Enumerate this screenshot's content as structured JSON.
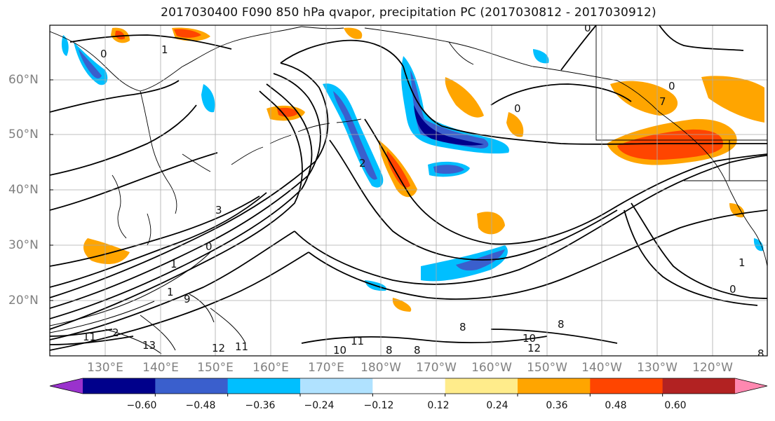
{
  "title": "2017030400 F090 850 hPa qvapor, precipitation PC (2017030812 - 2017030912)",
  "lat_labels": [
    "60°N",
    "50°N",
    "40°N",
    "30°N",
    "20°N"
  ],
  "lon_labels": [
    "130°E",
    "140°E",
    "150°E",
    "160°E",
    "170°E",
    "180°W",
    "170°W",
    "160°W",
    "150°W",
    "140°W",
    "130°W",
    "120°W"
  ],
  "colorbar": {
    "ticks": [
      "−0.60",
      "−0.48",
      "−0.36",
      "−0.24",
      "−0.12",
      "0.12",
      "0.24",
      "0.36",
      "0.48",
      "0.60"
    ],
    "colors": [
      "#9a32cd",
      "#00008b",
      "#3a5fcd",
      "#00bfff",
      "#b0e2ff",
      "#ffffff",
      "#ffec8b",
      "#ffa500",
      "#ff4500",
      "#b22222",
      "#ff88b0"
    ]
  },
  "contour_labels": [
    "0",
    "1",
    "3",
    "1",
    "0",
    "2",
    "0",
    "7",
    "0",
    "1",
    "9",
    "10",
    "11",
    "8",
    "8",
    "10",
    "12",
    "13",
    "11",
    "12",
    "0",
    "8",
    "2",
    "0",
    "8",
    "11",
    "8",
    "1"
  ]
}
